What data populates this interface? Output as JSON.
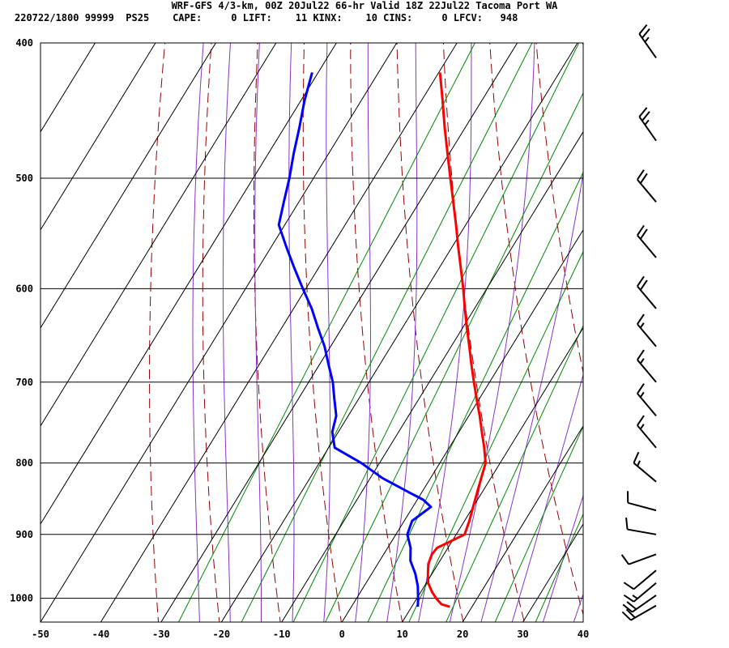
{
  "header": {
    "title": "WRF-GFS 4/3-km, 00Z 20Jul22 66-hr Valid 18Z 22Jul22 Tacoma Port WA",
    "subtitle": "220722/1800 99999  PS25    CAPE:     0 LIFT:    11 KINX:    10 CINS:     0 LFCV:   948"
  },
  "chart_data": {
    "type": "line",
    "chart_kind": "skew-T log-P sounding",
    "x_axis": {
      "range": [
        -50,
        40
      ],
      "ticks": [
        -50,
        -40,
        -30,
        -20,
        -10,
        0,
        10,
        20,
        30,
        40
      ]
    },
    "y_axis": {
      "scale": "log",
      "reversed": true,
      "range": [
        400,
        1040
      ],
      "ticks": [
        400,
        500,
        600,
        700,
        800,
        900,
        1000
      ]
    },
    "grid": true,
    "series": [
      {
        "color": "#ff0000",
        "points": [
          [
            1014,
            16.3
          ],
          [
            1010,
            14.7
          ],
          [
            1000,
            13.2
          ],
          [
            990,
            11.9
          ],
          [
            975,
            10.3
          ],
          [
            960,
            9.3
          ],
          [
            945,
            8.4
          ],
          [
            930,
            8.0
          ],
          [
            920,
            8.2
          ],
          [
            910,
            9.8
          ],
          [
            900,
            11.4
          ],
          [
            890,
            11.1
          ],
          [
            880,
            10.8
          ],
          [
            860,
            10.0
          ],
          [
            840,
            9.2
          ],
          [
            820,
            8.4
          ],
          [
            800,
            7.6
          ],
          [
            780,
            5.8
          ],
          [
            760,
            3.8
          ],
          [
            740,
            1.8
          ],
          [
            720,
            -0.4
          ],
          [
            700,
            -2.6
          ],
          [
            680,
            -4.8
          ],
          [
            660,
            -7.0
          ],
          [
            640,
            -9.3
          ],
          [
            620,
            -11.6
          ],
          [
            600,
            -13.9
          ],
          [
            580,
            -16.4
          ],
          [
            560,
            -19.0
          ],
          [
            540,
            -21.6
          ],
          [
            520,
            -24.4
          ],
          [
            500,
            -27.3
          ],
          [
            480,
            -30.3
          ],
          [
            460,
            -33.4
          ],
          [
            440,
            -36.5
          ],
          [
            420,
            -39.8
          ]
        ]
      },
      {
        "color": "#0000ff",
        "points": [
          [
            1014,
            11.0
          ],
          [
            1000,
            10.2
          ],
          [
            980,
            8.9
          ],
          [
            960,
            7.2
          ],
          [
            940,
            5.1
          ],
          [
            920,
            3.8
          ],
          [
            900,
            1.9
          ],
          [
            880,
            1.3
          ],
          [
            860,
            3.0
          ],
          [
            850,
            1.0
          ],
          [
            840,
            -2.0
          ],
          [
            820,
            -8.0
          ],
          [
            800,
            -13.0
          ],
          [
            780,
            -19.0
          ],
          [
            760,
            -21.0
          ],
          [
            740,
            -22.0
          ],
          [
            720,
            -24.0
          ],
          [
            700,
            -26.0
          ],
          [
            680,
            -28.5
          ],
          [
            660,
            -31.0
          ],
          [
            640,
            -34.0
          ],
          [
            620,
            -37.0
          ],
          [
            600,
            -40.5
          ],
          [
            580,
            -44.0
          ],
          [
            560,
            -47.5
          ],
          [
            540,
            -51.0
          ],
          [
            520,
            -52.5
          ],
          [
            500,
            -54.0
          ],
          [
            480,
            -55.8
          ],
          [
            460,
            -57.5
          ],
          [
            440,
            -59.4
          ],
          [
            420,
            -61.0
          ]
        ]
      }
    ],
    "isotherm_color": "#000000",
    "dry_adiabat_color": "#990000",
    "moist_adiabat_color": "#8833cc",
    "mixing_ratio_color": "#008800",
    "winds_kt": [
      {
        "p": 410,
        "dir": 325,
        "spd": 25
      },
      {
        "p": 470,
        "dir": 325,
        "spd": 25
      },
      {
        "p": 520,
        "dir": 320,
        "spd": 20
      },
      {
        "p": 570,
        "dir": 320,
        "spd": 20
      },
      {
        "p": 620,
        "dir": 320,
        "spd": 20
      },
      {
        "p": 660,
        "dir": 320,
        "spd": 15
      },
      {
        "p": 700,
        "dir": 320,
        "spd": 15
      },
      {
        "p": 740,
        "dir": 320,
        "spd": 15
      },
      {
        "p": 780,
        "dir": 320,
        "spd": 15
      },
      {
        "p": 825,
        "dir": 310,
        "spd": 15
      },
      {
        "p": 865,
        "dir": 285,
        "spd": 10
      },
      {
        "p": 900,
        "dir": 280,
        "spd": 10
      },
      {
        "p": 930,
        "dir": 250,
        "spd": 10
      },
      {
        "p": 955,
        "dir": 230,
        "spd": 10
      },
      {
        "p": 975,
        "dir": 230,
        "spd": 15
      },
      {
        "p": 995,
        "dir": 235,
        "spd": 20
      },
      {
        "p": 1012,
        "dir": 240,
        "spd": 20
      }
    ]
  }
}
